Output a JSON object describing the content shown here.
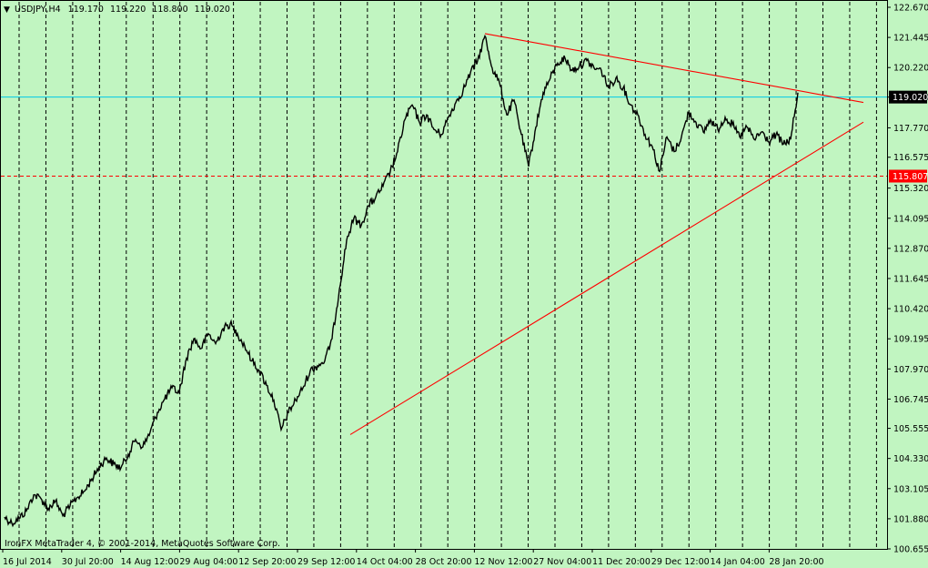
{
  "header": {
    "symbol": "USDJPY,H4",
    "open": "119.170",
    "high": "119.220",
    "low": "118.800",
    "close": "119.020"
  },
  "footer": {
    "copyright": "IronFX MetaTrader 4, © 2001-2014, MetaQuotes Software Corp."
  },
  "colors": {
    "background": "#c1f5c1",
    "price_line": "#00c8e6",
    "support_line": "#ff0000",
    "trendline": "#ff0000",
    "badge_bg_current": "#000000",
    "badge_bg_support": "#ff0000"
  },
  "chart_data": {
    "type": "line",
    "ylim": [
      100.655,
      122.67
    ],
    "y_ticks": [
      "122.670",
      "121.445",
      "120.220",
      "119.020",
      "117.770",
      "116.575",
      "115.320",
      "114.095",
      "112.870",
      "111.645",
      "110.420",
      "109.195",
      "107.970",
      "106.745",
      "105.555",
      "104.330",
      "103.105",
      "101.880",
      "100.655"
    ],
    "x_ticks": [
      "16 Jul 2014",
      "30 Jul 20:00",
      "14 Aug 12:00",
      "29 Aug 04:00",
      "12 Sep 20:00",
      "29 Sep 12:00",
      "14 Oct 04:00",
      "28 Oct 20:00",
      "12 Nov 12:00",
      "27 Nov 04:00",
      "11 Dec 20:00",
      "29 Dec 12:00",
      "14 Jan 04:00",
      "28 Jan 20:00"
    ],
    "current_price": {
      "value": 119.02,
      "label": "119.020"
    },
    "support_level": {
      "value": 115.807,
      "label": "115.807"
    },
    "series": [
      {
        "values": [
          [
            0,
            101.95
          ],
          [
            1,
            101.7
          ],
          [
            2,
            101.9
          ],
          [
            3,
            102.2
          ],
          [
            4,
            102.85
          ],
          [
            5,
            102.7
          ],
          [
            6,
            102.3
          ],
          [
            7,
            102.6
          ],
          [
            8,
            102.0
          ],
          [
            9,
            102.4
          ],
          [
            10,
            102.75
          ],
          [
            11,
            103.0
          ],
          [
            12,
            103.5
          ],
          [
            13,
            104.0
          ],
          [
            14,
            104.35
          ],
          [
            15,
            104.1
          ],
          [
            16,
            103.95
          ],
          [
            17,
            104.5
          ],
          [
            18,
            105.1
          ],
          [
            19,
            104.8
          ],
          [
            20,
            105.4
          ],
          [
            21,
            106.2
          ],
          [
            22,
            106.75
          ],
          [
            23,
            107.2
          ],
          [
            24,
            107.0
          ],
          [
            25,
            108.4
          ],
          [
            26,
            109.2
          ],
          [
            27,
            108.8
          ],
          [
            28,
            109.4
          ],
          [
            29,
            109.0
          ],
          [
            30,
            109.6
          ],
          [
            31,
            109.8
          ],
          [
            32,
            109.4
          ],
          [
            33,
            108.9
          ],
          [
            34,
            108.3
          ],
          [
            35,
            107.9
          ],
          [
            36,
            107.3
          ],
          [
            37,
            106.7
          ],
          [
            38,
            105.5
          ],
          [
            39,
            106.2
          ],
          [
            40,
            106.7
          ],
          [
            41,
            107.2
          ],
          [
            42,
            107.9
          ],
          [
            43,
            108.1
          ],
          [
            44,
            108.3
          ],
          [
            45,
            109.2
          ],
          [
            46,
            111.2
          ],
          [
            47,
            113.2
          ],
          [
            48,
            114.1
          ],
          [
            49,
            113.8
          ],
          [
            50,
            114.6
          ],
          [
            51,
            114.95
          ],
          [
            52,
            115.4
          ],
          [
            53,
            116.0
          ],
          [
            54,
            116.8
          ],
          [
            55,
            118.1
          ],
          [
            56,
            118.7
          ],
          [
            57,
            118.0
          ],
          [
            58,
            118.3
          ],
          [
            59,
            117.7
          ],
          [
            60,
            117.5
          ],
          [
            61,
            118.2
          ],
          [
            62,
            118.8
          ],
          [
            63,
            119.3
          ],
          [
            64,
            120.0
          ],
          [
            65,
            120.5
          ],
          [
            66,
            121.5
          ],
          [
            67,
            120.2
          ],
          [
            68,
            119.6
          ],
          [
            69,
            118.3
          ],
          [
            70,
            118.9
          ],
          [
            71,
            117.5
          ],
          [
            72,
            116.2
          ],
          [
            73,
            117.8
          ],
          [
            74,
            119.2
          ],
          [
            75,
            119.8
          ],
          [
            76,
            120.4
          ],
          [
            77,
            120.6
          ],
          [
            78,
            120.1
          ],
          [
            79,
            120.3
          ],
          [
            80,
            120.5
          ],
          [
            81,
            120.2
          ],
          [
            82,
            120.1
          ],
          [
            83,
            119.4
          ],
          [
            84,
            119.8
          ],
          [
            85,
            119.4
          ],
          [
            86,
            118.7
          ],
          [
            87,
            118.3
          ],
          [
            88,
            117.5
          ],
          [
            89,
            117.0
          ],
          [
            90,
            116.0
          ],
          [
            91,
            117.4
          ],
          [
            92,
            116.8
          ],
          [
            93,
            117.4
          ],
          [
            94,
            118.4
          ],
          [
            95,
            118.0
          ],
          [
            96,
            117.6
          ],
          [
            97,
            118.1
          ],
          [
            98,
            117.7
          ],
          [
            99,
            118.2
          ],
          [
            100,
            117.9
          ],
          [
            101,
            117.4
          ],
          [
            102,
            117.8
          ],
          [
            103,
            117.3
          ],
          [
            104,
            117.6
          ],
          [
            105,
            117.2
          ],
          [
            106,
            117.5
          ],
          [
            107,
            117.1
          ],
          [
            108,
            117.3
          ],
          [
            109,
            119.2
          ]
        ]
      }
    ],
    "trendlines": [
      {
        "from": [
          66,
          121.6
        ],
        "to": [
          118,
          118.8
        ]
      },
      {
        "from": [
          47.5,
          105.3
        ],
        "to": [
          118,
          118.0
        ]
      }
    ]
  }
}
